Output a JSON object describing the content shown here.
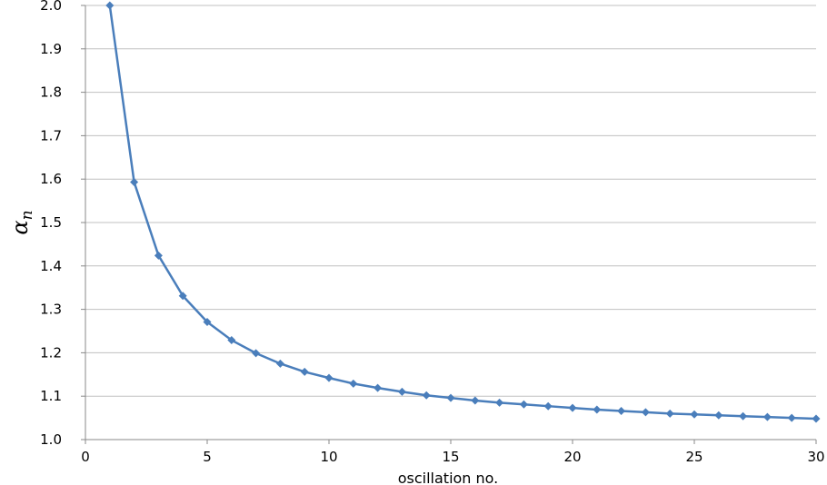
{
  "chart_data": {
    "type": "line",
    "xlabel": "oscillation no.",
    "ylabel_symbol": "α",
    "ylabel_subscript": "n",
    "xlim": [
      0,
      30
    ],
    "ylim": [
      1.0,
      2.0
    ],
    "xticks": [
      0,
      5,
      10,
      15,
      20,
      25,
      30
    ],
    "yticks": [
      "1.0",
      "1.1",
      "1.2",
      "1.3",
      "1.4",
      "1.5",
      "1.6",
      "1.7",
      "1.8",
      "1.9",
      "2.0"
    ],
    "grid": "horizontal",
    "line_color": "#4a7ebb",
    "series": [
      {
        "marker": "diamond",
        "x": [
          1,
          2,
          3,
          4,
          5,
          6,
          7,
          8,
          9,
          10,
          11,
          12,
          13,
          14,
          15,
          16,
          17,
          18,
          19,
          20,
          21,
          22,
          23,
          24,
          25,
          26,
          27,
          28,
          29,
          30
        ],
        "values": [
          2.0,
          1.593,
          1.424,
          1.331,
          1.271,
          1.229,
          1.199,
          1.175,
          1.156,
          1.142,
          1.129,
          1.119,
          1.11,
          1.102,
          1.096,
          1.09,
          1.085,
          1.081,
          1.077,
          1.073,
          1.069,
          1.066,
          1.063,
          1.06,
          1.058,
          1.056,
          1.054,
          1.052,
          1.05,
          1.048
        ]
      }
    ]
  }
}
